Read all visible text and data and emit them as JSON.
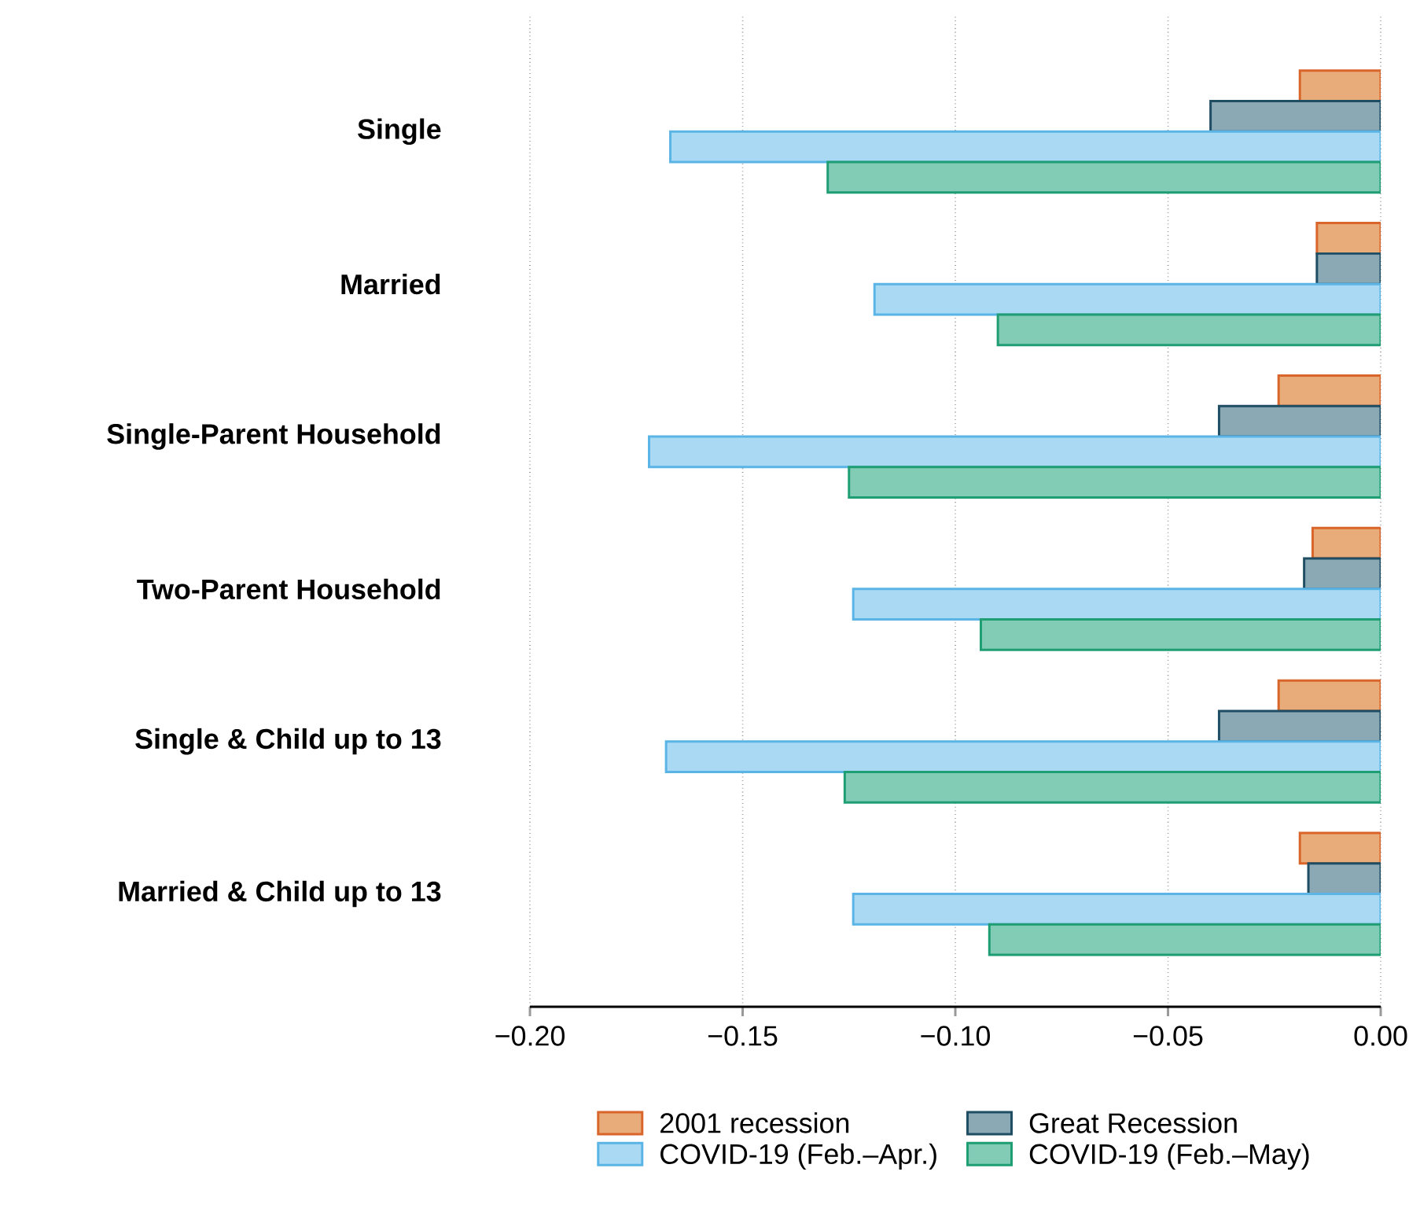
{
  "chart_data": {
    "type": "bar",
    "orientation": "horizontal",
    "categories": [
      "Single",
      "Married",
      "Single-Parent Household",
      "Two-Parent Household",
      "Single & Child up to 13",
      "Married & Child up to 13"
    ],
    "series": [
      {
        "name": "2001 recession",
        "color": "#e8ac7a",
        "values": [
          -0.019,
          -0.015,
          -0.024,
          -0.016,
          -0.024,
          -0.019
        ]
      },
      {
        "name": "Great Recession",
        "color": "#8aa9b4",
        "values": [
          -0.04,
          -0.015,
          -0.038,
          -0.018,
          -0.038,
          -0.017
        ]
      },
      {
        "name": "COVID-19 (Feb.–Apr.)",
        "color": "#aadaf3",
        "values": [
          -0.167,
          -0.119,
          -0.172,
          -0.124,
          -0.168,
          -0.124
        ]
      },
      {
        "name": "COVID-19 (Feb.–May)",
        "color": "#82cbb5",
        "values": [
          -0.13,
          -0.09,
          -0.125,
          -0.094,
          -0.126,
          -0.092
        ]
      }
    ],
    "xlim": [
      -0.2,
      0
    ],
    "xticks": [
      {
        "value": -0.2,
        "label": "−0.20"
      },
      {
        "value": -0.15,
        "label": "−0.15"
      },
      {
        "value": -0.1,
        "label": "−0.10"
      },
      {
        "value": -0.05,
        "label": "−0.05"
      },
      {
        "value": 0,
        "label": "0.00"
      }
    ],
    "grid": "x",
    "legend": "bottom"
  }
}
